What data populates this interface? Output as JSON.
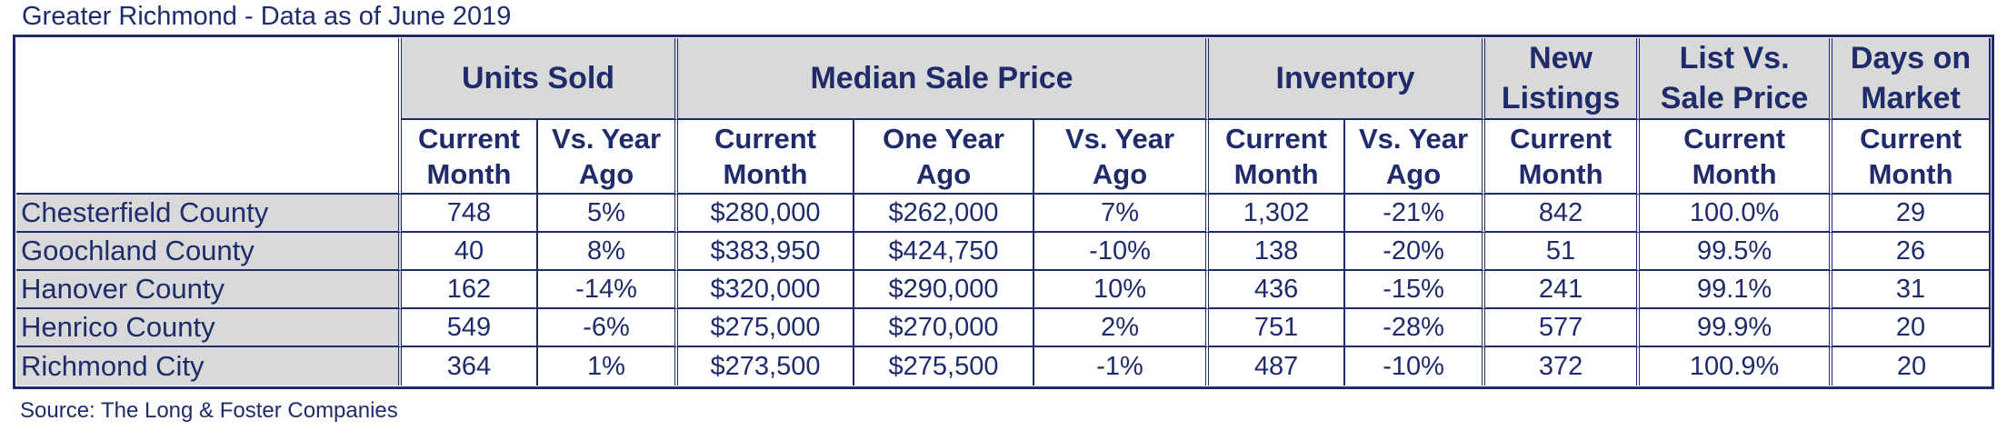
{
  "title": "Greater Richmond - Data as of June 2019",
  "source": "Source: The Long & Foster Companies",
  "groups": {
    "units_sold": "Units Sold",
    "median_sale_price": "Median Sale Price",
    "inventory": "Inventory",
    "new_listings_1": "New",
    "new_listings_2": "Listings",
    "list_vs_sale_1": "List Vs.",
    "list_vs_sale_2": "Sale Price",
    "days_on_market_1": "Days on",
    "days_on_market_2": "Market"
  },
  "subheaders": {
    "current_1": "Current",
    "current_2": "Month",
    "vs_year_1": "Vs. Year",
    "vs_year_2": "Ago",
    "one_year_1": "One Year",
    "one_year_2": "Ago"
  },
  "rows": [
    {
      "name": "Chesterfield County",
      "units_current": "748",
      "units_vs": "5%",
      "price_current": "$280,000",
      "price_year_ago": "$262,000",
      "price_vs": "7%",
      "inv_current": "1,302",
      "inv_vs": "-21%",
      "new_listings": "842",
      "list_vs_sale": "100.0%",
      "dom": "29"
    },
    {
      "name": "Goochland County",
      "units_current": "40",
      "units_vs": "8%",
      "price_current": "$383,950",
      "price_year_ago": "$424,750",
      "price_vs": "-10%",
      "inv_current": "138",
      "inv_vs": "-20%",
      "new_listings": "51",
      "list_vs_sale": "99.5%",
      "dom": "26"
    },
    {
      "name": "Hanover County",
      "units_current": "162",
      "units_vs": "-14%",
      "price_current": "$320,000",
      "price_year_ago": "$290,000",
      "price_vs": "10%",
      "inv_current": "436",
      "inv_vs": "-15%",
      "new_listings": "241",
      "list_vs_sale": "99.1%",
      "dom": "31"
    },
    {
      "name": "Henrico County",
      "units_current": "549",
      "units_vs": "-6%",
      "price_current": "$275,000",
      "price_year_ago": "$270,000",
      "price_vs": "2%",
      "inv_current": "751",
      "inv_vs": "-28%",
      "new_listings": "577",
      "list_vs_sale": "99.9%",
      "dom": "20"
    },
    {
      "name": "Richmond City",
      "units_current": "364",
      "units_vs": "1%",
      "price_current": "$273,500",
      "price_year_ago": "$275,500",
      "price_vs": "-1%",
      "inv_current": "487",
      "inv_vs": "-10%",
      "new_listings": "372",
      "list_vs_sale": "100.9%",
      "dom": "20"
    }
  ]
}
